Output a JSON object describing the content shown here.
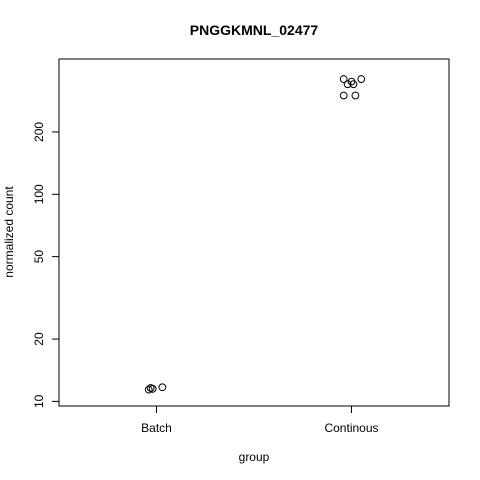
{
  "chart_data": {
    "type": "scatter",
    "title": "PNGGKMNL_02477",
    "xlabel": "group",
    "ylabel": "normalized count",
    "categories": [
      "Batch",
      "Continous"
    ],
    "y_scale": "log",
    "y_ticks": [
      10,
      20,
      50,
      100,
      200
    ],
    "ylim": [
      9.5,
      450
    ],
    "grid": false,
    "legend": "none",
    "points": [
      {
        "group": "Batch",
        "jitter": -0.04,
        "y": 11.4
      },
      {
        "group": "Batch",
        "jitter": -0.02,
        "y": 11.5
      },
      {
        "group": "Batch",
        "jitter": 0.03,
        "y": 11.7
      },
      {
        "group": "Batch",
        "jitter": -0.03,
        "y": 11.6
      },
      {
        "group": "Continous",
        "jitter": -0.04,
        "y": 360
      },
      {
        "group": "Continous",
        "jitter": -0.02,
        "y": 340
      },
      {
        "group": "Continous",
        "jitter": 0.0,
        "y": 350
      },
      {
        "group": "Continous",
        "jitter": 0.01,
        "y": 340
      },
      {
        "group": "Continous",
        "jitter": 0.05,
        "y": 360
      },
      {
        "group": "Continous",
        "jitter": -0.04,
        "y": 300
      },
      {
        "group": "Continous",
        "jitter": 0.02,
        "y": 300
      }
    ]
  }
}
